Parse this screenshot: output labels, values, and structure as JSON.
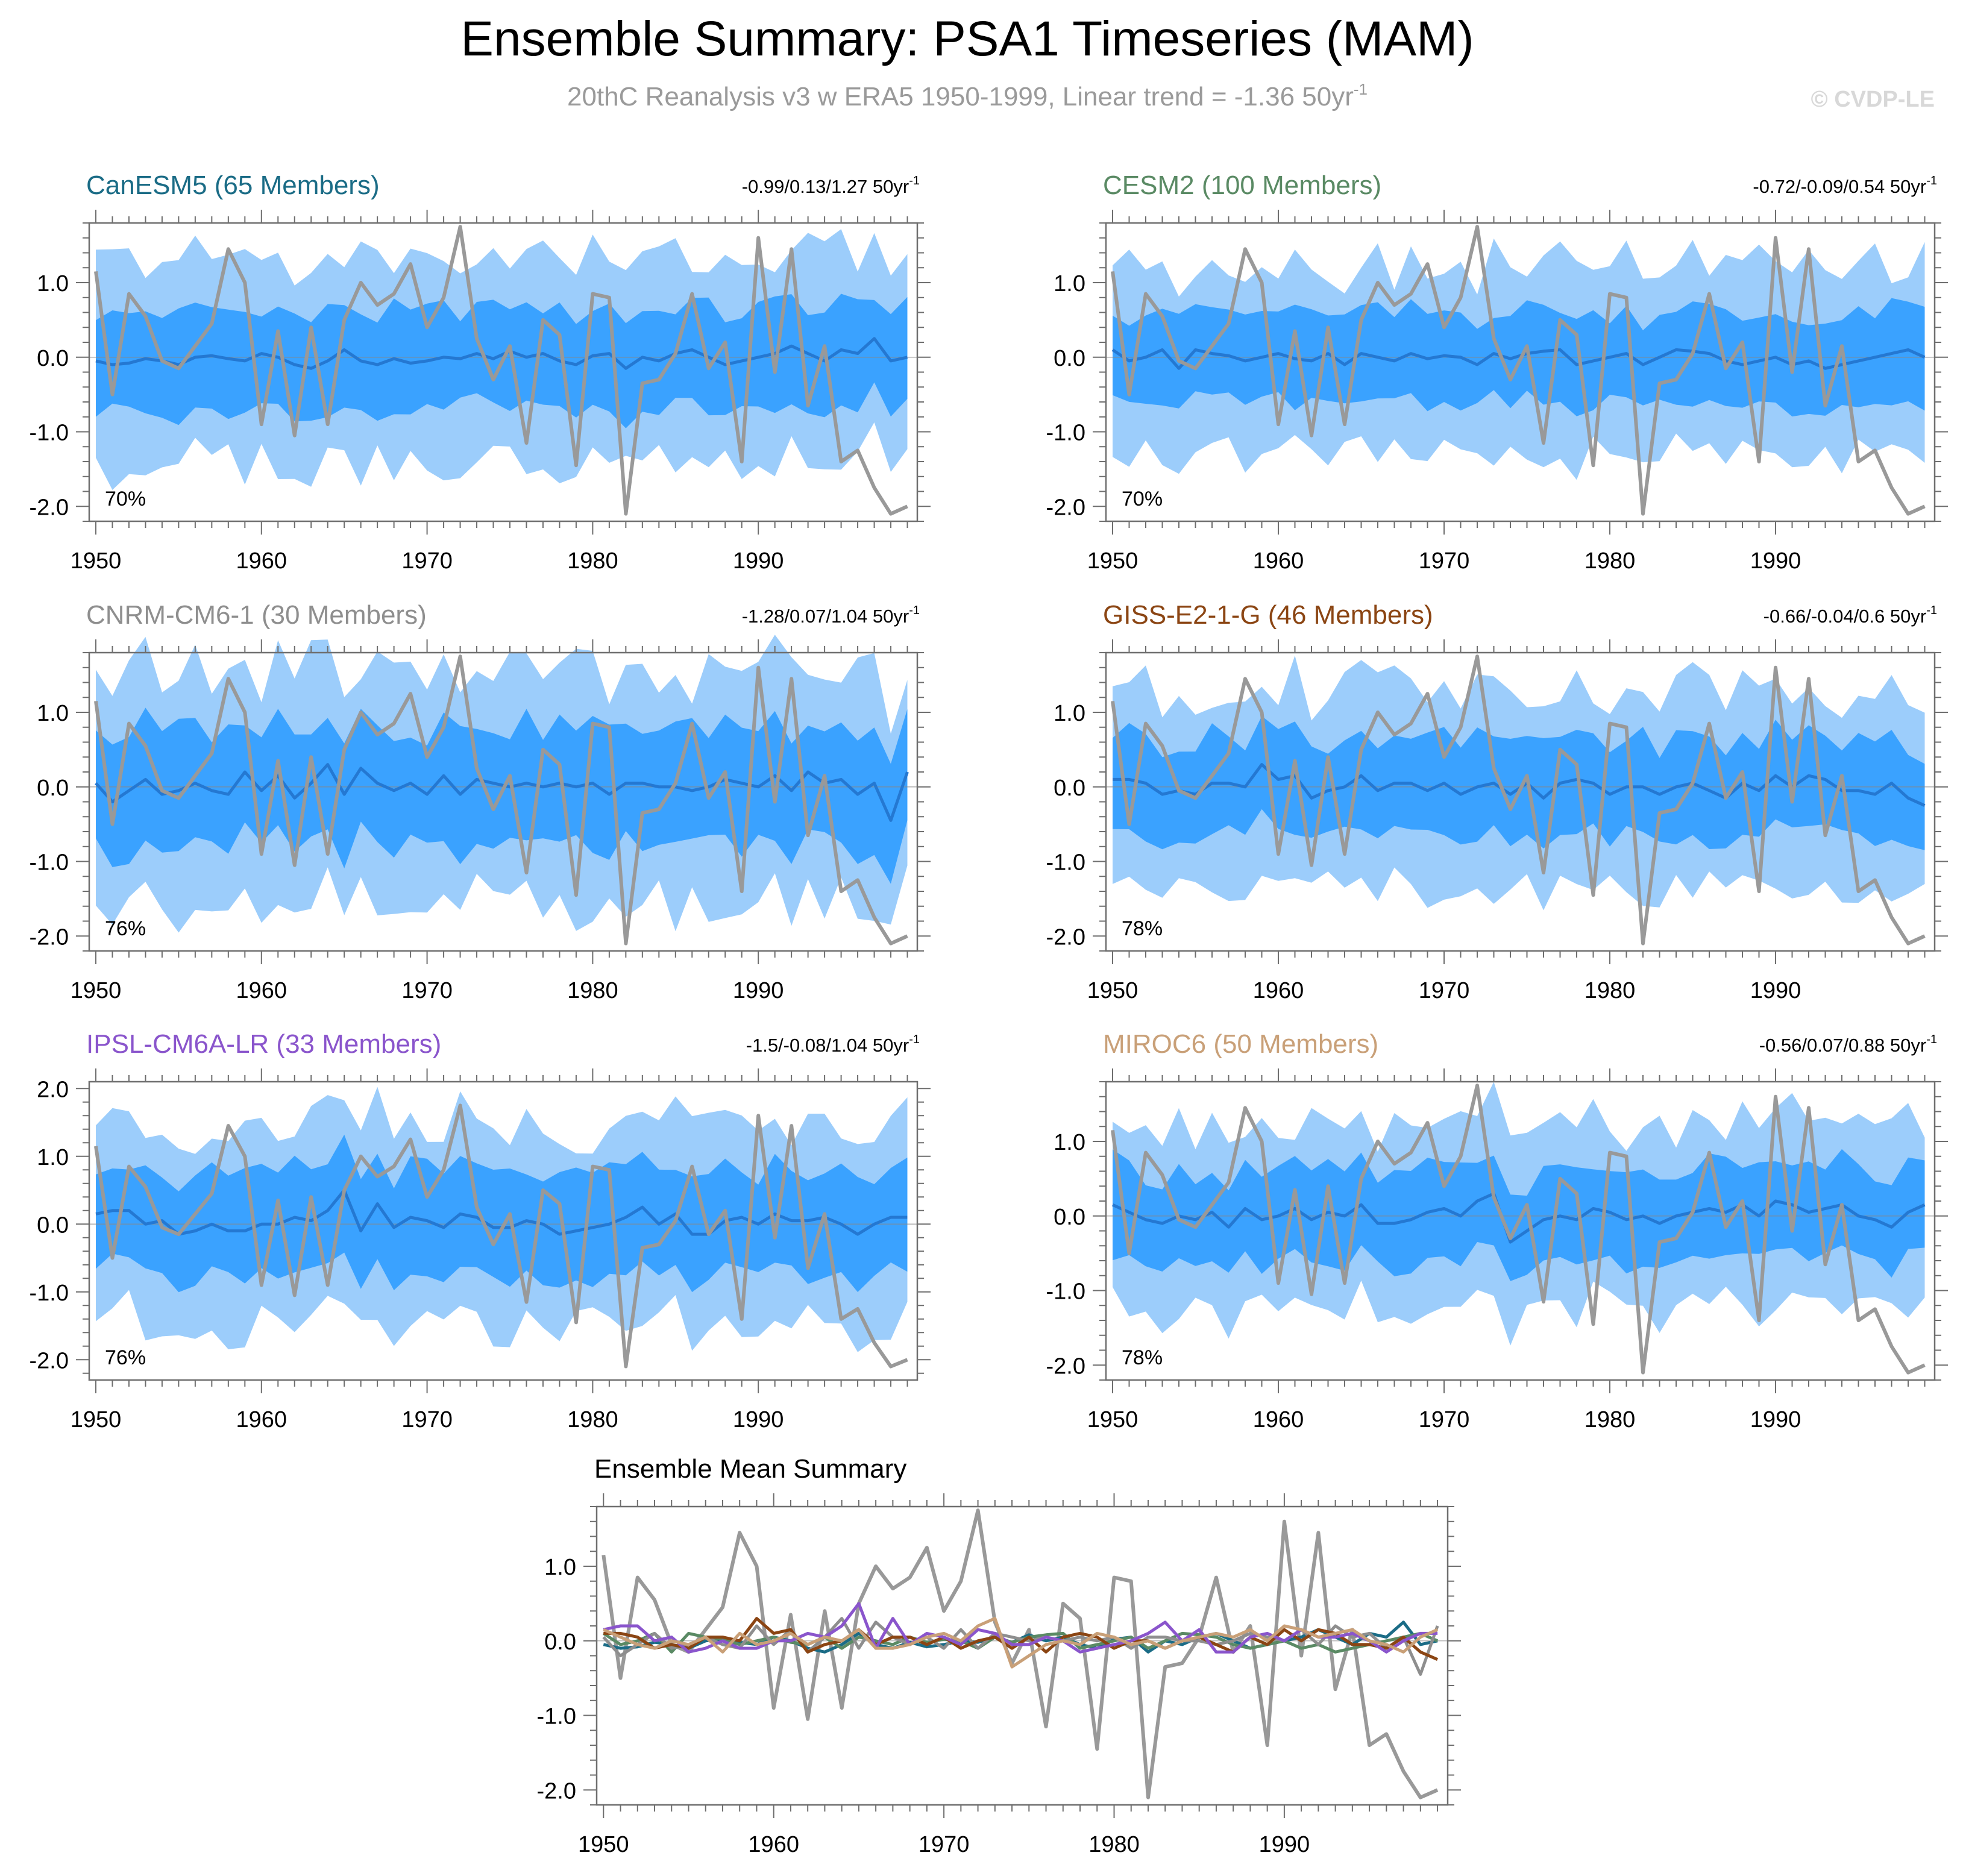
{
  "title": "Ensemble Summary: PSA1 Timeseries (MAM)",
  "subtitle": "20thC Reanalysis v3 w ERA5 1950-1999, Linear trend = -1.36 50yr",
  "subtitle_sup": "-1",
  "watermark": "© CVDP-LE",
  "colors": {
    "outer_band": "#9ccdfb",
    "inner_band": "#3aa2ff",
    "ens_mean": "#2478d2",
    "obs": "#999999",
    "zero_line": "#888888",
    "axis": "#6e6e6e"
  },
  "obs": {
    "name": "20thC Reanalysis v3 w ERA5",
    "years": [
      1950,
      1951,
      1952,
      1953,
      1954,
      1955,
      1956,
      1957,
      1958,
      1959,
      1960,
      1961,
      1962,
      1963,
      1964,
      1965,
      1966,
      1967,
      1968,
      1969,
      1970,
      1971,
      1972,
      1973,
      1974,
      1975,
      1976,
      1977,
      1978,
      1979,
      1980,
      1981,
      1982,
      1983,
      1984,
      1985,
      1986,
      1987,
      1988,
      1989,
      1990,
      1991,
      1992,
      1993,
      1994,
      1995,
      1996,
      1997,
      1998,
      1999
    ],
    "values": [
      1.15,
      -0.5,
      0.85,
      0.55,
      -0.05,
      -0.15,
      0.15,
      0.45,
      1.45,
      1.0,
      -0.9,
      0.35,
      -1.05,
      0.4,
      -0.9,
      0.5,
      1.0,
      0.7,
      0.85,
      1.25,
      0.4,
      0.8,
      1.75,
      0.25,
      -0.3,
      0.15,
      -1.15,
      0.5,
      0.3,
      -1.45,
      0.85,
      0.8,
      -2.1,
      -0.35,
      -0.3,
      0.05,
      0.85,
      -0.15,
      0.2,
      -1.4,
      1.6,
      -0.2,
      1.45,
      -0.65,
      0.15,
      -1.4,
      -1.25,
      -1.75,
      -2.1,
      -2.0
    ]
  },
  "panels": [
    {
      "id": "CanESM5",
      "title": "CanESM5 (65 Members)",
      "title_color": "#1b6c86",
      "trend_text": "-0.99/0.13/1.27 50yr",
      "trend_sup": "-1",
      "percent": "70%",
      "ylim": [
        -2.2,
        1.8
      ],
      "ytick_values": [
        -2.0,
        -1.0,
        0.0,
        1.0
      ],
      "ytick_labels": [
        "-2.0",
        "-1.0",
        "0.0",
        "1.0"
      ],
      "ens_mean": [
        -0.05,
        -0.1,
        -0.08,
        -0.02,
        -0.05,
        -0.1,
        0.0,
        0.02,
        -0.02,
        -0.05,
        0.05,
        0.0,
        -0.1,
        -0.15,
        -0.05,
        0.1,
        -0.05,
        -0.1,
        -0.02,
        -0.08,
        -0.05,
        0.0,
        -0.02,
        0.05,
        -0.02,
        0.08,
        0.0,
        0.05,
        -0.05,
        -0.1,
        0.02,
        0.05,
        -0.15,
        0.0,
        -0.05,
        0.05,
        0.1,
        0.0,
        -0.1,
        -0.05,
        0.0,
        0.05,
        0.15,
        0.05,
        -0.05,
        0.1,
        0.05,
        0.25,
        -0.05,
        0.0
      ],
      "band_spread": {
        "inner": 0.65,
        "outer": 1.35
      }
    },
    {
      "id": "CESM2",
      "title": "CESM2 (100 Members)",
      "title_color": "#5a8a64",
      "trend_text": "-0.72/-0.09/0.54 50yr",
      "trend_sup": "-1",
      "percent": "70%",
      "ylim": [
        -2.2,
        1.8
      ],
      "ytick_values": [
        -2.0,
        -1.0,
        0.0,
        1.0
      ],
      "ytick_labels": [
        "-2.0",
        "-1.0",
        "0.0",
        "1.0"
      ],
      "ens_mean": [
        0.1,
        -0.05,
        0.0,
        0.1,
        -0.15,
        0.1,
        0.05,
        0.02,
        -0.05,
        0.0,
        0.05,
        -0.02,
        -0.05,
        0.05,
        -0.1,
        0.05,
        0.0,
        -0.05,
        0.05,
        -0.02,
        0.02,
        0.0,
        -0.1,
        0.05,
        -0.02,
        0.05,
        0.08,
        0.1,
        -0.1,
        -0.05,
        0.0,
        0.05,
        -0.1,
        0.0,
        0.1,
        0.08,
        0.05,
        -0.05,
        -0.1,
        -0.05,
        0.0,
        -0.1,
        -0.05,
        -0.15,
        -0.1,
        -0.05,
        0.0,
        0.05,
        0.1,
        0.0
      ],
      "band_spread": {
        "inner": 0.6,
        "outer": 1.25
      }
    },
    {
      "id": "CNRM-CM6-1",
      "title": "CNRM-CM6-1 (30 Members)",
      "title_color": "#8e8e8e",
      "trend_text": "-1.28/0.07/1.04 50yr",
      "trend_sup": "-1",
      "percent": "76%",
      "ylim": [
        -2.2,
        1.8
      ],
      "ytick_values": [
        -2.0,
        -1.0,
        0.0,
        1.0
      ],
      "ytick_labels": [
        "-2.0",
        "-1.0",
        "0.0",
        "1.0"
      ],
      "ens_mean": [
        0.05,
        -0.2,
        -0.05,
        0.1,
        -0.1,
        -0.05,
        0.05,
        -0.05,
        -0.1,
        0.2,
        -0.05,
        0.15,
        -0.15,
        0.05,
        0.3,
        -0.1,
        0.25,
        0.05,
        -0.05,
        0.05,
        -0.1,
        0.15,
        -0.1,
        0.1,
        0.05,
        0.0,
        0.05,
        0.0,
        0.05,
        0.0,
        0.05,
        -0.1,
        0.05,
        0.05,
        0.0,
        0.0,
        -0.05,
        0.0,
        0.1,
        0.05,
        0.0,
        0.15,
        -0.05,
        0.2,
        0.05,
        0.1,
        -0.1,
        0.05,
        -0.45,
        0.2
      ],
      "band_spread": {
        "inner": 0.8,
        "outer": 1.55
      }
    },
    {
      "id": "GISS-E2-1-G",
      "title": "GISS-E2-1-G (46 Members)",
      "title_color": "#8b4513",
      "trend_text": "-0.66/-0.04/0.6 50yr",
      "trend_sup": "-1",
      "percent": "78%",
      "ylim": [
        -2.2,
        1.8
      ],
      "ytick_values": [
        -2.0,
        -1.0,
        0.0,
        1.0
      ],
      "ytick_labels": [
        "-2.0",
        "-1.0",
        "0.0",
        "1.0"
      ],
      "ens_mean": [
        0.1,
        0.1,
        0.05,
        -0.1,
        -0.05,
        -0.1,
        0.05,
        0.05,
        0.0,
        0.3,
        0.1,
        0.15,
        -0.15,
        -0.05,
        0.0,
        0.15,
        -0.05,
        0.05,
        0.05,
        -0.05,
        0.05,
        -0.1,
        0.0,
        0.05,
        -0.1,
        0.05,
        -0.15,
        0.05,
        0.1,
        0.05,
        -0.1,
        0.0,
        0.0,
        -0.1,
        0.0,
        0.05,
        -0.05,
        -0.15,
        0.05,
        -0.05,
        0.15,
        0.0,
        0.15,
        0.1,
        -0.05,
        -0.05,
        -0.1,
        0.05,
        -0.15,
        -0.25
      ],
      "band_spread": {
        "inner": 0.65,
        "outer": 1.3
      }
    },
    {
      "id": "IPSL-CM6A-LR",
      "title": "IPSL-CM6A-LR (33 Members)",
      "title_color": "#8a55cc",
      "trend_text": "-1.5/-0.08/1.04 50yr",
      "trend_sup": "-1",
      "percent": "76%",
      "ylim": [
        -2.3,
        2.1
      ],
      "ytick_values": [
        -2.0,
        -1.0,
        0.0,
        1.0,
        2.0
      ],
      "ytick_labels": [
        "-2.0",
        "-1.0",
        "0.0",
        "1.0",
        "2.0"
      ],
      "ens_mean": [
        0.15,
        0.2,
        0.2,
        0.0,
        0.05,
        -0.15,
        -0.1,
        0.0,
        -0.1,
        -0.1,
        0.0,
        0.0,
        0.1,
        0.05,
        0.2,
        0.5,
        -0.1,
        0.3,
        -0.05,
        0.1,
        0.05,
        -0.05,
        0.15,
        0.1,
        -0.05,
        -0.05,
        0.05,
        0.0,
        -0.15,
        -0.1,
        -0.05,
        0.0,
        0.1,
        0.25,
        0.0,
        0.15,
        -0.15,
        -0.15,
        0.05,
        0.1,
        0.0,
        0.15,
        0.05,
        0.05,
        0.1,
        0.0,
        -0.15,
        0.0,
        0.1,
        0.1
      ],
      "band_spread": {
        "inner": 0.75,
        "outer": 1.45
      }
    },
    {
      "id": "MIROC6",
      "title": "MIROC6 (50 Members)",
      "title_color": "#c9a078",
      "trend_text": "-0.56/0.07/0.88 50yr",
      "trend_sup": "-1",
      "percent": "78%",
      "ylim": [
        -2.2,
        1.8
      ],
      "ytick_values": [
        -2.0,
        -1.0,
        0.0,
        1.0
      ],
      "ytick_labels": [
        "-2.0",
        "-1.0",
        "0.0",
        "1.0"
      ],
      "ens_mean": [
        0.15,
        0.05,
        -0.05,
        -0.1,
        0.0,
        -0.05,
        0.05,
        -0.15,
        0.1,
        -0.05,
        0.0,
        0.1,
        -0.05,
        0.05,
        0.0,
        0.15,
        -0.1,
        -0.1,
        -0.05,
        0.05,
        0.1,
        0.0,
        0.2,
        0.3,
        -0.35,
        -0.2,
        -0.05,
        0.0,
        -0.05,
        0.1,
        0.05,
        -0.05,
        0.0,
        -0.1,
        0.0,
        0.05,
        0.1,
        0.05,
        0.15,
        0.0,
        0.2,
        0.15,
        0.05,
        0.1,
        0.15,
        0.0,
        -0.05,
        -0.15,
        0.05,
        0.15
      ],
      "band_spread": {
        "inner": 0.6,
        "outer": 1.2
      }
    }
  ],
  "summary": {
    "title": "Ensemble Mean Summary",
    "ylim": [
      -2.2,
      1.8
    ],
    "ytick_values": [
      -2.0,
      -1.0,
      0.0,
      1.0
    ],
    "ytick_labels": [
      "-2.0",
      "-1.0",
      "0.0",
      "1.0"
    ]
  },
  "xticks": [
    1950,
    1960,
    1970,
    1980,
    1990
  ],
  "xtick_labels": [
    "1950",
    "1960",
    "1970",
    "1980",
    "1990"
  ],
  "chart_data": {
    "type": "line",
    "title": "Ensemble Summary: PSA1 Timeseries (MAM)",
    "xlabel": "",
    "ylabel": "",
    "xlim": [
      1950,
      1999
    ],
    "series_note": "each model panel shows ensemble-mean line, inner and outer percentile bands, and observed timeseries",
    "legend": [
      "CanESM5 (65 Members)",
      "CESM2 (100 Members)",
      "CNRM-CM6-1 (30 Members)",
      "GISS-E2-1-G (46 Members)",
      "IPSL-CM6A-LR (33 Members)",
      "MIROC6 (50 Members)"
    ]
  }
}
